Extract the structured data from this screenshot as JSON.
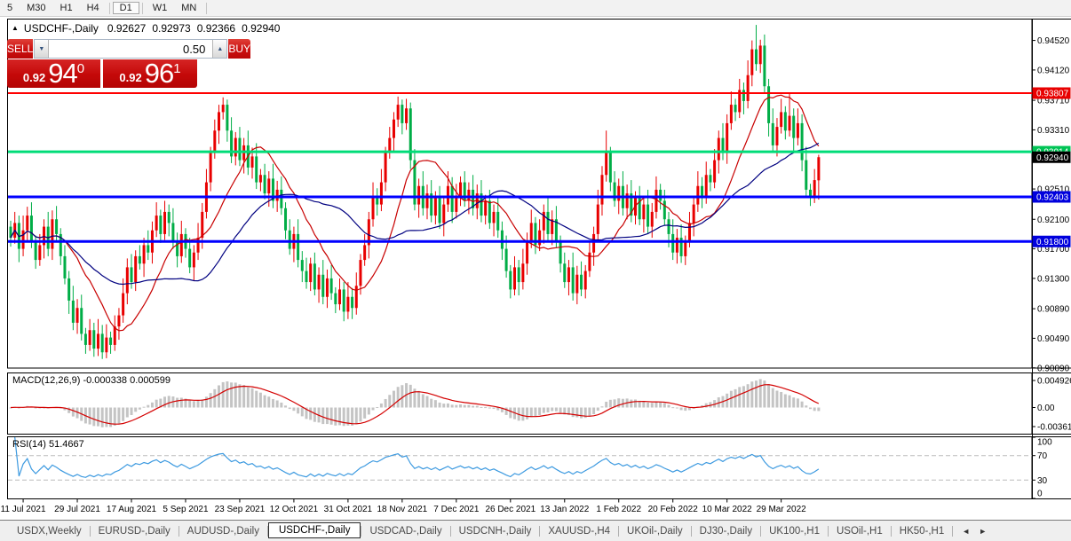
{
  "toolbar": {
    "timeframes": [
      "5",
      "M30",
      "H1",
      "H4",
      "D1",
      "W1",
      "MN"
    ],
    "active": "D1",
    "separators_after": [
      "H4",
      "D1",
      "MN"
    ]
  },
  "icons": {
    "collapse": "▲",
    "spin_down": "▼",
    "spin_up": "▲",
    "scroll_left": "◄",
    "scroll_right": "►"
  },
  "chart_header": {
    "symbol": "USDCHF-,Daily",
    "open": "0.92627",
    "high": "0.92973",
    "low": "0.92366",
    "close": "0.92940"
  },
  "trade_panel": {
    "sell_label": "SELL",
    "buy_label": "BUY",
    "volume": "0.50",
    "sell_price": {
      "prefix": "0.92",
      "big": "94",
      "sup": "0"
    },
    "buy_price": {
      "prefix": "0.92",
      "big": "96",
      "sup": "1"
    }
  },
  "colors": {
    "bull": "#e80000",
    "bear": "#00ad46",
    "ma_fast": "#c80000",
    "ma_slow": "#000080",
    "macd_hist": "#c4c4c4",
    "macd_signal": "#d40000",
    "rsi_line": "#3d9ae0",
    "level_dashed": "#bbbbbb",
    "pane_border": "#000000",
    "axis_text": "#000000"
  },
  "chart_data": {
    "type": "candlestick",
    "title": "USDCHF-,Daily",
    "x_tick_labels": [
      "11 Jul 2021",
      "29 Jul 2021",
      "17 Aug 2021",
      "5 Sep 2021",
      "23 Sep 2021",
      "12 Oct 2021",
      "31 Oct 2021",
      "18 Nov 2021",
      "7 Dec 2021",
      "26 Dec 2021",
      "13 Jan 2022",
      "1 Feb 2022",
      "20 Feb 2022",
      "10 Mar 2022",
      "29 Mar 2022"
    ],
    "x_tick_start_index": 3,
    "x_tick_step": 13,
    "y_axis_ticks": [
      "0.94520",
      "0.94120",
      "0.93710",
      "0.93310",
      "0.92910",
      "0.92510",
      "0.92100",
      "0.91700",
      "0.91300",
      "0.90890",
      "0.90490",
      "0.90090"
    ],
    "price_markers": [
      {
        "label": "0.93807",
        "price": 0.93807,
        "color": "#e80000"
      },
      {
        "label": "0.93014",
        "price": 0.93014,
        "color": "#00c455"
      },
      {
        "label": "0.92940",
        "price": 0.9294,
        "color": "#000000"
      },
      {
        "label": "0.92403",
        "price": 0.92403,
        "color": "#0000dd"
      },
      {
        "label": "0.91800",
        "price": 0.918,
        "color": "#0000dd"
      }
    ],
    "hlines": [
      {
        "price": 0.93807,
        "color": "#ff0000",
        "width": 2
      },
      {
        "price": 0.93014,
        "color": "#00dc78",
        "width": 3
      },
      {
        "price": 0.92403,
        "color": "#0000ff",
        "width": 3
      },
      {
        "price": 0.918,
        "color": "#0000ff",
        "width": 3
      }
    ],
    "moving_averages": [
      {
        "period": 13,
        "color": "#c80000"
      },
      {
        "period": 34,
        "color": "#000080"
      }
    ],
    "macd": {
      "label": "MACD(12,26,9)",
      "value_main": "-0.000338",
      "value_signal": "0.000599",
      "params": [
        12,
        26,
        9
      ],
      "scale_labels": [
        "0.004926",
        "0.00",
        "-0.00361"
      ]
    },
    "rsi": {
      "label": "RSI(14)",
      "value": "51.4667",
      "period": 14,
      "scale_labels": [
        "100",
        "70",
        "30",
        "0"
      ],
      "levels": [
        70,
        30
      ]
    },
    "candles": [
      [
        0.92,
        0.9208,
        0.9173,
        0.9185
      ],
      [
        0.9185,
        0.922,
        0.9177,
        0.9205
      ],
      [
        0.9205,
        0.9215,
        0.9152,
        0.917
      ],
      [
        0.917,
        0.9215,
        0.916,
        0.9195
      ],
      [
        0.9195,
        0.9227,
        0.918,
        0.9215
      ],
      [
        0.9215,
        0.9233,
        0.9171,
        0.918
      ],
      [
        0.918,
        0.9188,
        0.9143,
        0.9155
      ],
      [
        0.9155,
        0.919,
        0.9147,
        0.9175
      ],
      [
        0.9175,
        0.921,
        0.9157,
        0.92
      ],
      [
        0.92,
        0.922,
        0.916,
        0.917
      ],
      [
        0.917,
        0.9222,
        0.9155,
        0.921
      ],
      [
        0.921,
        0.9228,
        0.9181,
        0.919
      ],
      [
        0.919,
        0.9198,
        0.9148,
        0.916
      ],
      [
        0.916,
        0.9175,
        0.9122,
        0.913
      ],
      [
        0.913,
        0.914,
        0.9082,
        0.91
      ],
      [
        0.91,
        0.912,
        0.906,
        0.907
      ],
      [
        0.907,
        0.9102,
        0.9055,
        0.909
      ],
      [
        0.909,
        0.9108,
        0.9046,
        0.9055
      ],
      [
        0.9055,
        0.9063,
        0.9028,
        0.904
      ],
      [
        0.904,
        0.9075,
        0.9032,
        0.906
      ],
      [
        0.906,
        0.907,
        0.9024,
        0.9035
      ],
      [
        0.9035,
        0.9075,
        0.9025,
        0.9055
      ],
      [
        0.9055,
        0.9067,
        0.9021,
        0.903
      ],
      [
        0.903,
        0.9068,
        0.9022,
        0.905
      ],
      [
        0.905,
        0.9058,
        0.9028,
        0.904
      ],
      [
        0.904,
        0.908,
        0.9032,
        0.9065
      ],
      [
        0.9065,
        0.909,
        0.9047,
        0.908
      ],
      [
        0.908,
        0.913,
        0.907,
        0.911
      ],
      [
        0.911,
        0.9157,
        0.9095,
        0.9145
      ],
      [
        0.9145,
        0.9163,
        0.9116,
        0.9125
      ],
      [
        0.9125,
        0.9168,
        0.9113,
        0.916
      ],
      [
        0.916,
        0.9175,
        0.9142,
        0.915
      ],
      [
        0.915,
        0.9185,
        0.9132,
        0.9175
      ],
      [
        0.9175,
        0.9195,
        0.9155,
        0.9165
      ],
      [
        0.9165,
        0.9207,
        0.915,
        0.9195
      ],
      [
        0.9195,
        0.9233,
        0.9186,
        0.9215
      ],
      [
        0.9215,
        0.9223,
        0.9178,
        0.919
      ],
      [
        0.919,
        0.9235,
        0.9182,
        0.922
      ],
      [
        0.922,
        0.923,
        0.9187,
        0.9205
      ],
      [
        0.9205,
        0.9225,
        0.917,
        0.918
      ],
      [
        0.918,
        0.9192,
        0.9145,
        0.916
      ],
      [
        0.916,
        0.9208,
        0.9151,
        0.919
      ],
      [
        0.919,
        0.9198,
        0.9158,
        0.917
      ],
      [
        0.917,
        0.9185,
        0.9137,
        0.9145
      ],
      [
        0.9145,
        0.9175,
        0.9127,
        0.9165
      ],
      [
        0.9165,
        0.9205,
        0.9155,
        0.9185
      ],
      [
        0.9185,
        0.9232,
        0.917,
        0.922
      ],
      [
        0.922,
        0.9278,
        0.9211,
        0.926
      ],
      [
        0.926,
        0.9308,
        0.9248,
        0.93
      ],
      [
        0.93,
        0.9345,
        0.9292,
        0.933
      ],
      [
        0.933,
        0.9365,
        0.9312,
        0.9355
      ],
      [
        0.9355,
        0.9375,
        0.9345,
        0.9365
      ],
      [
        0.9365,
        0.9372,
        0.9315,
        0.933
      ],
      [
        0.933,
        0.9348,
        0.9286,
        0.9295
      ],
      [
        0.9295,
        0.9328,
        0.9283,
        0.932
      ],
      [
        0.932,
        0.9335,
        0.9282,
        0.929
      ],
      [
        0.929,
        0.932,
        0.9272,
        0.931
      ],
      [
        0.931,
        0.933,
        0.927,
        0.928
      ],
      [
        0.928,
        0.9307,
        0.9265,
        0.9295
      ],
      [
        0.9295,
        0.9313,
        0.9251,
        0.926
      ],
      [
        0.926,
        0.9278,
        0.9248,
        0.927
      ],
      [
        0.927,
        0.9285,
        0.9237,
        0.9245
      ],
      [
        0.9245,
        0.9275,
        0.9227,
        0.9265
      ],
      [
        0.9265,
        0.9285,
        0.9225,
        0.9235
      ],
      [
        0.9235,
        0.9262,
        0.922,
        0.925
      ],
      [
        0.925,
        0.9268,
        0.9216,
        0.9225
      ],
      [
        0.9225,
        0.9233,
        0.9183,
        0.9195
      ],
      [
        0.9195,
        0.921,
        0.9162,
        0.917
      ],
      [
        0.917,
        0.92,
        0.9152,
        0.919
      ],
      [
        0.919,
        0.921,
        0.9145,
        0.9155
      ],
      [
        0.9155,
        0.9167,
        0.9125,
        0.914
      ],
      [
        0.914,
        0.9158,
        0.9116,
        0.9125
      ],
      [
        0.9125,
        0.9158,
        0.9113,
        0.915
      ],
      [
        0.915,
        0.9165,
        0.9107,
        0.9115
      ],
      [
        0.9115,
        0.9145,
        0.9097,
        0.9135
      ],
      [
        0.9135,
        0.9155,
        0.9095,
        0.9105
      ],
      [
        0.9105,
        0.9142,
        0.909,
        0.913
      ],
      [
        0.913,
        0.9148,
        0.9101,
        0.911
      ],
      [
        0.911,
        0.9118,
        0.9083,
        0.9095
      ],
      [
        0.9095,
        0.913,
        0.9087,
        0.9115
      ],
      [
        0.9115,
        0.9125,
        0.9072,
        0.9085
      ],
      [
        0.9085,
        0.9125,
        0.9075,
        0.9105
      ],
      [
        0.9105,
        0.9117,
        0.9075,
        0.909
      ],
      [
        0.909,
        0.9138,
        0.9081,
        0.912
      ],
      [
        0.912,
        0.9163,
        0.9108,
        0.9155
      ],
      [
        0.9155,
        0.919,
        0.9147,
        0.9175
      ],
      [
        0.9175,
        0.922,
        0.9157,
        0.921
      ],
      [
        0.921,
        0.926,
        0.92,
        0.924
      ],
      [
        0.924,
        0.9252,
        0.9215,
        0.923
      ],
      [
        0.923,
        0.9278,
        0.9221,
        0.926
      ],
      [
        0.926,
        0.9308,
        0.9248,
        0.93
      ],
      [
        0.93,
        0.9335,
        0.9292,
        0.932
      ],
      [
        0.932,
        0.9355,
        0.9302,
        0.9345
      ],
      [
        0.9345,
        0.9376,
        0.9335,
        0.9365
      ],
      [
        0.9365,
        0.9372,
        0.9325,
        0.934
      ],
      [
        0.934,
        0.9373,
        0.9331,
        0.936
      ],
      [
        0.936,
        0.9368,
        0.9278,
        0.929
      ],
      [
        0.929,
        0.9305,
        0.9222,
        0.923
      ],
      [
        0.923,
        0.9265,
        0.9212,
        0.9255
      ],
      [
        0.9255,
        0.9275,
        0.9215,
        0.9225
      ],
      [
        0.9225,
        0.9257,
        0.921,
        0.9245
      ],
      [
        0.9245,
        0.9263,
        0.9206,
        0.9215
      ],
      [
        0.9215,
        0.9248,
        0.9203,
        0.924
      ],
      [
        0.924,
        0.9255,
        0.9197,
        0.9205
      ],
      [
        0.9205,
        0.924,
        0.9187,
        0.923
      ],
      [
        0.923,
        0.9275,
        0.922,
        0.9255
      ],
      [
        0.9255,
        0.9267,
        0.9205,
        0.922
      ],
      [
        0.922,
        0.9258,
        0.9211,
        0.924
      ],
      [
        0.924,
        0.9268,
        0.9228,
        0.926
      ],
      [
        0.926,
        0.9275,
        0.9227,
        0.9235
      ],
      [
        0.9235,
        0.926,
        0.9217,
        0.925
      ],
      [
        0.925,
        0.927,
        0.9215,
        0.9225
      ],
      [
        0.9225,
        0.9257,
        0.921,
        0.9245
      ],
      [
        0.9245,
        0.9263,
        0.9206,
        0.9215
      ],
      [
        0.9215,
        0.9243,
        0.9203,
        0.9235
      ],
      [
        0.9235,
        0.925,
        0.9197,
        0.9205
      ],
      [
        0.9205,
        0.923,
        0.9187,
        0.922
      ],
      [
        0.922,
        0.924,
        0.9185,
        0.9195
      ],
      [
        0.9195,
        0.9207,
        0.9155,
        0.917
      ],
      [
        0.917,
        0.9188,
        0.9131,
        0.914
      ],
      [
        0.914,
        0.9148,
        0.9103,
        0.9115
      ],
      [
        0.9115,
        0.916,
        0.9107,
        0.9145
      ],
      [
        0.9145,
        0.9155,
        0.9107,
        0.9125
      ],
      [
        0.9125,
        0.917,
        0.9115,
        0.915
      ],
      [
        0.915,
        0.9192,
        0.9135,
        0.918
      ],
      [
        0.918,
        0.9223,
        0.9171,
        0.9205
      ],
      [
        0.9205,
        0.9213,
        0.9163,
        0.9175
      ],
      [
        0.9175,
        0.921,
        0.9167,
        0.9195
      ],
      [
        0.9195,
        0.923,
        0.9177,
        0.922
      ],
      [
        0.922,
        0.924,
        0.918,
        0.919
      ],
      [
        0.919,
        0.9222,
        0.9175,
        0.921
      ],
      [
        0.921,
        0.9228,
        0.9171,
        0.918
      ],
      [
        0.918,
        0.9188,
        0.9138,
        0.915
      ],
      [
        0.915,
        0.9165,
        0.9117,
        0.9125
      ],
      [
        0.9125,
        0.9155,
        0.9107,
        0.9145
      ],
      [
        0.9145,
        0.9165,
        0.91,
        0.911
      ],
      [
        0.911,
        0.9147,
        0.9095,
        0.9135
      ],
      [
        0.9135,
        0.9153,
        0.9106,
        0.9115
      ],
      [
        0.9115,
        0.9148,
        0.9103,
        0.914
      ],
      [
        0.914,
        0.918,
        0.9132,
        0.9165
      ],
      [
        0.9165,
        0.92,
        0.9147,
        0.919
      ],
      [
        0.919,
        0.925,
        0.918,
        0.923
      ],
      [
        0.923,
        0.9282,
        0.9215,
        0.927
      ],
      [
        0.927,
        0.933,
        0.9261,
        0.93
      ],
      [
        0.93,
        0.9308,
        0.9248,
        0.926
      ],
      [
        0.926,
        0.9275,
        0.9227,
        0.9235
      ],
      [
        0.9235,
        0.9265,
        0.9217,
        0.9255
      ],
      [
        0.9255,
        0.9275,
        0.9215,
        0.9225
      ],
      [
        0.9225,
        0.9257,
        0.921,
        0.9245
      ],
      [
        0.9245,
        0.9263,
        0.9206,
        0.9215
      ],
      [
        0.9215,
        0.9248,
        0.9203,
        0.924
      ],
      [
        0.924,
        0.9255,
        0.9202,
        0.921
      ],
      [
        0.921,
        0.924,
        0.9192,
        0.923
      ],
      [
        0.923,
        0.925,
        0.919,
        0.92
      ],
      [
        0.92,
        0.9232,
        0.9185,
        0.922
      ],
      [
        0.922,
        0.9268,
        0.9211,
        0.925
      ],
      [
        0.925,
        0.9258,
        0.9223,
        0.9235
      ],
      [
        0.9235,
        0.925,
        0.9202,
        0.921
      ],
      [
        0.921,
        0.922,
        0.9172,
        0.919
      ],
      [
        0.919,
        0.921,
        0.9155,
        0.9165
      ],
      [
        0.9165,
        0.9197,
        0.915,
        0.9185
      ],
      [
        0.9185,
        0.9203,
        0.9151,
        0.916
      ],
      [
        0.916,
        0.9188,
        0.9148,
        0.918
      ],
      [
        0.918,
        0.922,
        0.9172,
        0.9205
      ],
      [
        0.9205,
        0.924,
        0.9187,
        0.923
      ],
      [
        0.923,
        0.9275,
        0.922,
        0.9255
      ],
      [
        0.9255,
        0.9267,
        0.9225,
        0.924
      ],
      [
        0.924,
        0.9288,
        0.9231,
        0.927
      ],
      [
        0.927,
        0.9278,
        0.9248,
        0.926
      ],
      [
        0.926,
        0.9305,
        0.9252,
        0.929
      ],
      [
        0.929,
        0.933,
        0.9272,
        0.932
      ],
      [
        0.932,
        0.934,
        0.929,
        0.93
      ],
      [
        0.93,
        0.9352,
        0.9285,
        0.934
      ],
      [
        0.934,
        0.9383,
        0.9331,
        0.9365
      ],
      [
        0.9365,
        0.9373,
        0.9343,
        0.9355
      ],
      [
        0.9355,
        0.94,
        0.9347,
        0.9385
      ],
      [
        0.9385,
        0.9395,
        0.9352,
        0.937
      ],
      [
        0.937,
        0.9425,
        0.936,
        0.9405
      ],
      [
        0.9405,
        0.9452,
        0.939,
        0.944
      ],
      [
        0.944,
        0.9473,
        0.9411,
        0.942
      ],
      [
        0.942,
        0.9453,
        0.9408,
        0.9445
      ],
      [
        0.9445,
        0.946,
        0.9382,
        0.939
      ],
      [
        0.939,
        0.94,
        0.9322,
        0.934
      ],
      [
        0.934,
        0.936,
        0.93,
        0.931
      ],
      [
        0.931,
        0.9347,
        0.9295,
        0.9335
      ],
      [
        0.9335,
        0.9373,
        0.9326,
        0.9355
      ],
      [
        0.9355,
        0.9363,
        0.9318,
        0.933
      ],
      [
        0.933,
        0.938,
        0.9322,
        0.935
      ],
      [
        0.935,
        0.936,
        0.9302,
        0.932
      ],
      [
        0.932,
        0.936,
        0.931,
        0.934
      ],
      [
        0.934,
        0.9352,
        0.9275,
        0.929
      ],
      [
        0.929,
        0.9308,
        0.9241,
        0.925
      ],
      [
        0.925,
        0.9258,
        0.9228,
        0.924
      ],
      [
        0.924,
        0.9278,
        0.9232,
        0.9263
      ],
      [
        0.92627,
        0.92973,
        0.92366,
        0.9294
      ]
    ]
  },
  "tabs": {
    "items": [
      "USDX,Weekly",
      "EURUSD-,Daily",
      "AUDUSD-,Daily",
      "USDCHF-,Daily",
      "USDCAD-,Daily",
      "USDCNH-,Daily",
      "XAUUSD-,H4",
      "UKOil-,Daily",
      "DJ30-,Daily",
      "UK100-,H1",
      "USOil-,H1",
      "HK50-,H1"
    ],
    "active": "USDCHF-,Daily"
  }
}
